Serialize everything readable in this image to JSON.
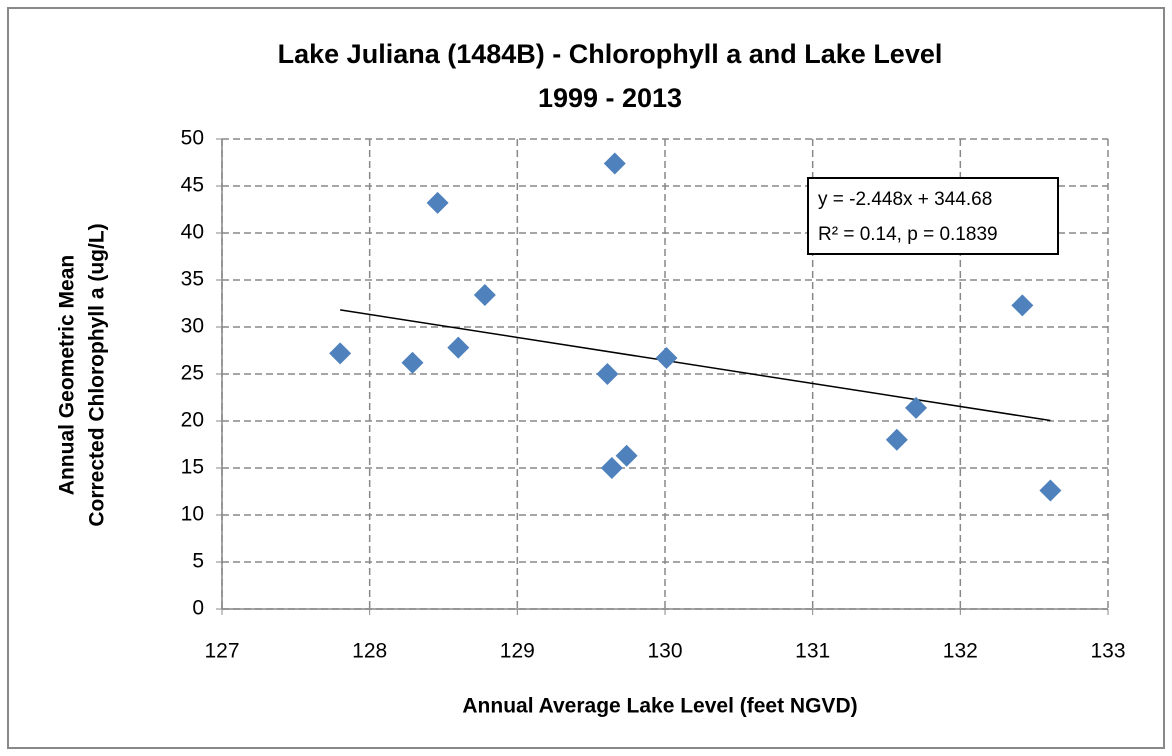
{
  "chart_data": {
    "type": "scatter",
    "title": [
      "Lake Juliana (1484B) - Chlorophyll a and Lake Level",
      "1999 - 2013"
    ],
    "x_label": "Annual Average Lake Level (feet NGVD)",
    "y_label": [
      "Annual Geometric Mean",
      "Corrected Chlorophyll a (ug/L)"
    ],
    "x": [
      127.8,
      128.29,
      128.46,
      128.6,
      128.78,
      129.61,
      129.64,
      129.66,
      129.74,
      130.01,
      131.57,
      131.7,
      132.42,
      132.61
    ],
    "values": [
      27.2,
      26.2,
      43.2,
      27.8,
      33.4,
      25.0,
      15.0,
      47.4,
      16.3,
      26.7,
      18.0,
      21.4,
      32.3,
      12.6
    ],
    "color": "#4f81bd",
    "xlim": [
      127,
      133
    ],
    "xticks": [
      127,
      128,
      129,
      130,
      131,
      132,
      133
    ],
    "ylim": [
      0,
      50
    ],
    "yticks": [
      0,
      5,
      10,
      15,
      20,
      25,
      30,
      35,
      40,
      45,
      50
    ],
    "grid": true,
    "trendline": {
      "slope": -2.448,
      "intercept": 344.68
    },
    "annotation": [
      "y = -2.448x + 344.68",
      "R² = 0.14, p = 0.1839"
    ]
  }
}
